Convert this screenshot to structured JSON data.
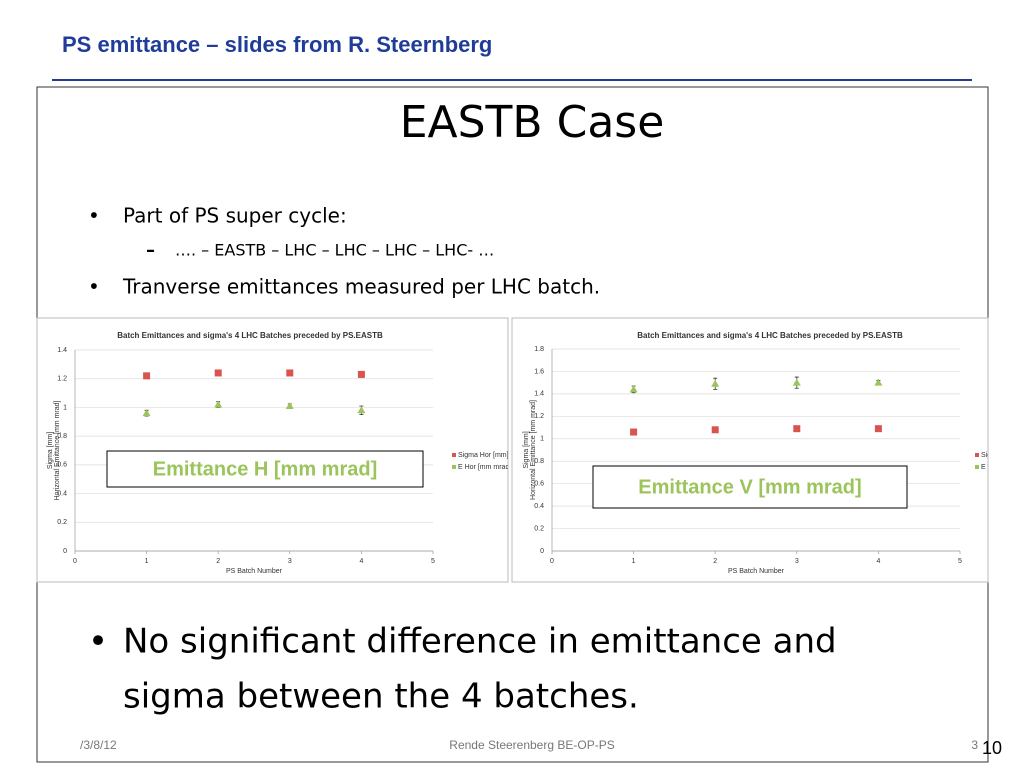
{
  "header": {
    "title": "PS emittance – slides from R. Steernberg"
  },
  "slide": {
    "title": "EASTB Case",
    "bullets": [
      "Part of PS super cycle:",
      "Tranverse emittances measured per LHC batch."
    ],
    "sub_bullets": [
      "…. – EASTB – LHC – LHC – LHC – LHC- …"
    ],
    "conclusion": [
      "No significant difference in emittance and",
      "sigma between the 4 batches."
    ]
  },
  "footer": {
    "date": "/3/8/12",
    "author": "Rende Steerenberg BE-OP-PS",
    "slide_number": "3",
    "page_number": "10"
  },
  "chart_data": [
    {
      "type": "scatter",
      "title": "Batch Emittances and sigma's 4 LHC Batches preceded by PS.EASTB",
      "x_label": "PS Batch Number",
      "y_label": [
        "Sigma [mm]",
        "Horizontal Emittance [mm mrad]"
      ],
      "annotation": "Emittance H [mm mrad]",
      "x": [
        1,
        2,
        3,
        4
      ],
      "xlim": [
        0,
        5
      ],
      "xticks": [
        0,
        1,
        2,
        3,
        4,
        5
      ],
      "ylim": [
        0,
        1.4
      ],
      "yticks": [
        0,
        0.2,
        0.4,
        0.6,
        0.8,
        1,
        1.2,
        1.4
      ],
      "grid": true,
      "series": [
        {
          "name": "Sigma Hor [mm]",
          "color": "#d9534f",
          "marker": "square",
          "values": [
            1.22,
            1.24,
            1.24,
            1.23
          ]
        },
        {
          "name": "E Hor [mm mrad]",
          "color": "#9bc45a",
          "marker": "triangle",
          "values": [
            0.96,
            1.02,
            1.01,
            0.98
          ],
          "errors": [
            0.02,
            0.02,
            0.015,
            0.03
          ]
        }
      ]
    },
    {
      "type": "scatter",
      "title": "Batch Emittances and sigma's 4 LHC Batches preceded by PS.EASTB",
      "x_label": "PS Batch Number",
      "y_label": [
        "Sigma [mm]",
        "Horizontal Emittance [mm mrad]"
      ],
      "annotation": "Emittance V [mm mrad]",
      "x": [
        1,
        2,
        3,
        4
      ],
      "xlim": [
        0,
        5
      ],
      "xticks": [
        0,
        1,
        2,
        3,
        4,
        5
      ],
      "ylim": [
        0,
        1.8
      ],
      "yticks": [
        0,
        0.2,
        0.4,
        0.6,
        0.8,
        1,
        1.2,
        1.4,
        1.6,
        1.8
      ],
      "grid": true,
      "series": [
        {
          "name": "Sigma Ver [mm]",
          "color": "#d9534f",
          "marker": "square",
          "values": [
            1.06,
            1.08,
            1.09,
            1.09
          ]
        },
        {
          "name": "E Ver [mm mrad]",
          "color": "#9bc45a",
          "marker": "triangle",
          "values": [
            1.44,
            1.49,
            1.5,
            1.5
          ],
          "errors": [
            0.03,
            0.05,
            0.05,
            0.02
          ]
        }
      ]
    }
  ]
}
